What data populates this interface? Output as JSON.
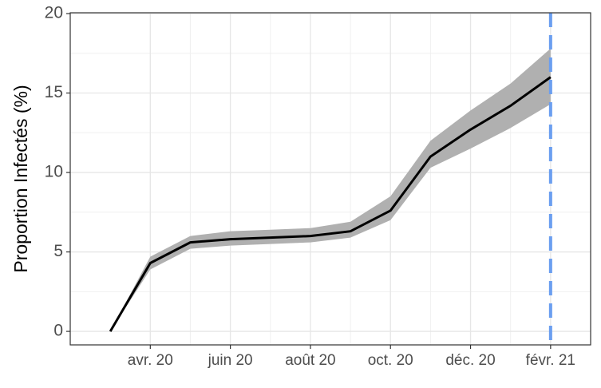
{
  "chart_data": {
    "type": "line",
    "y_label": "Proportion Infectés (%)",
    "x": [
      "2020-03",
      "2020-04",
      "2020-05",
      "2020-06",
      "2020-07",
      "2020-08",
      "2020-09",
      "2020-10",
      "2020-11",
      "2020-12",
      "2021-01",
      "2021-02"
    ],
    "values": [
      0,
      4.3,
      5.6,
      5.8,
      5.9,
      6.0,
      6.3,
      7.6,
      11.0,
      12.7,
      14.2,
      16.0
    ],
    "band": {
      "lower": [
        0,
        3.9,
        5.2,
        5.4,
        5.5,
        5.6,
        5.9,
        7.0,
        10.3,
        11.5,
        12.8,
        14.3
      ],
      "upper": [
        0,
        4.7,
        6.0,
        6.3,
        6.4,
        6.5,
        6.9,
        8.5,
        12.0,
        13.9,
        15.6,
        17.8
      ],
      "color": "#b0b0b0"
    },
    "color": "#000000",
    "vline": {
      "x": "2021-02",
      "color": "#6a9ef0"
    },
    "xlim": [
      "2020-02",
      "2021-03"
    ],
    "xticks": [
      {
        "value": "2020-04",
        "label": "avr. 20"
      },
      {
        "value": "2020-06",
        "label": "juin 20"
      },
      {
        "value": "2020-08",
        "label": "août 20"
      },
      {
        "value": "2020-10",
        "label": "oct. 20"
      },
      {
        "value": "2020-12",
        "label": "déc. 20"
      },
      {
        "value": "2021-02",
        "label": "févr. 21"
      }
    ],
    "ylim": [
      -0.85,
      20.05
    ],
    "yticks": [
      0,
      5,
      10,
      15,
      20
    ],
    "grid": true
  }
}
